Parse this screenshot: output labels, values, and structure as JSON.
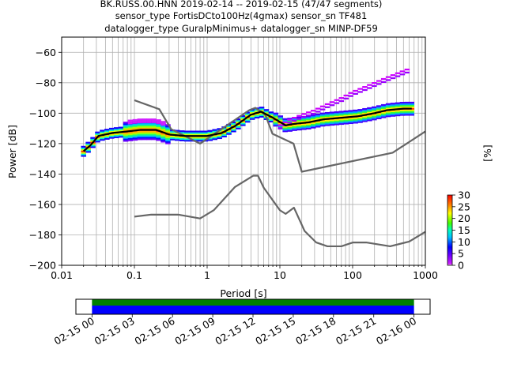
{
  "title": {
    "line1": "BK.RUSS.00.HNN   2019-02-14 -- 2019-02-15  (47/47 segments)",
    "line2": "sensor_type FortisDCto100Hz(4gmax) sensor_sn TF481",
    "line3": "datalogger_type GuralpMinimus+ datalogger_sn MINP-DF59"
  },
  "chart_data": [
    {
      "type": "heatmap",
      "xlabel": "Period [s]",
      "ylabel": "Power [dB]",
      "x_scale": "log",
      "xlim": [
        0.01,
        1000
      ],
      "ylim": [
        -200,
        -50
      ],
      "grid": true,
      "x_ticks": [
        {
          "value": 0.01,
          "label": "0.01"
        },
        {
          "value": 0.1,
          "label": "0.1"
        },
        {
          "value": 1,
          "label": "1"
        },
        {
          "value": 10,
          "label": "10"
        },
        {
          "value": 100,
          "label": "100"
        },
        {
          "value": 1000,
          "label": "1000"
        }
      ],
      "y_ticks": [
        {
          "value": -60,
          "label": "−60"
        },
        {
          "value": -80,
          "label": "−80"
        },
        {
          "value": -100,
          "label": "−100"
        },
        {
          "value": -120,
          "label": "−120"
        },
        {
          "value": -140,
          "label": "−140"
        },
        {
          "value": -160,
          "label": "−160"
        },
        {
          "value": -180,
          "label": "−180"
        },
        {
          "value": -200,
          "label": "−200"
        }
      ],
      "colorbar": {
        "label": "[%]",
        "range": [
          0,
          30
        ],
        "ticks": [
          {
            "value": 0,
            "label": "0"
          },
          {
            "value": 5,
            "label": "5"
          },
          {
            "value": 10,
            "label": "10"
          },
          {
            "value": 15,
            "label": "15"
          },
          {
            "value": 20,
            "label": "20"
          },
          {
            "value": 25,
            "label": "25"
          },
          {
            "value": 30,
            "label": "30"
          }
        ]
      },
      "series": [
        {
          "role": "new-high-noise-model",
          "color": "#666666",
          "x": [
            0.1,
            0.22,
            0.32,
            0.8,
            3.8,
            4.6,
            6.3,
            7.9,
            15.4,
            20,
            354.8,
            1000
          ],
          "y": [
            -91.5,
            -97.4,
            -110.5,
            -120,
            -98,
            -96.5,
            -101,
            -113.5,
            -120,
            -138.5,
            -126,
            -112
          ]
        },
        {
          "role": "new-low-noise-model",
          "color": "#666666",
          "x": [
            0.1,
            0.17,
            0.4,
            0.8,
            1.24,
            2.4,
            4.3,
            5,
            6,
            10,
            12,
            15.6,
            21.9,
            31.6,
            45,
            70,
            101,
            154,
            328,
            600,
            1000
          ],
          "y": [
            -168,
            -166.7,
            -166.7,
            -169.2,
            -163.7,
            -148.6,
            -141.1,
            -141.1,
            -149,
            -163.8,
            -166.2,
            -162.1,
            -177.5,
            -185,
            -187.5,
            -187.5,
            -185,
            -185,
            -187.5,
            -184.4,
            -178
          ]
        },
        {
          "role": "mean",
          "color": "#000000",
          "x": [
            0.02,
            0.025,
            0.032,
            0.05,
            0.08,
            0.12,
            0.2,
            0.3,
            0.5,
            1,
            1.6,
            2.5,
            4,
            5.5,
            8,
            12,
            16,
            25,
            40,
            70,
            120,
            200,
            300,
            500,
            650
          ],
          "y": [
            -125,
            -121,
            -115,
            -113,
            -112,
            -111,
            -111,
            -114,
            -115,
            -115,
            -113,
            -108,
            -101,
            -99,
            -103,
            -108,
            -107,
            -106,
            -104,
            -103,
            -102,
            -100,
            -98,
            -97,
            -97
          ]
        },
        {
          "role": "upper-spread",
          "color": "#cc00ff",
          "x": [
            10,
            14,
            20,
            30,
            45,
            70,
            100,
            160,
            250,
            400,
            650
          ],
          "y": [
            -108,
            -104,
            -101,
            -98,
            -94,
            -90,
            -86,
            -82,
            -78,
            -74,
            -70
          ]
        }
      ]
    },
    {
      "type": "timeline",
      "ticks": [
        "02-15 00",
        "02-15 03",
        "02-15 06",
        "02-15 09",
        "02-15 12",
        "02-15 15",
        "02-15 18",
        "02-15 21",
        "02-16 00"
      ],
      "tick_hours": [
        0,
        3,
        6,
        9,
        12,
        15,
        18,
        21,
        24
      ],
      "xlim_hours": [
        -1.2,
        25.2
      ],
      "bars": [
        {
          "role": "data-availability",
          "color": "#008000",
          "start": 0,
          "end": 24
        },
        {
          "role": "segments-used",
          "color": "#0000ff",
          "start": 0,
          "end": 24
        }
      ]
    }
  ]
}
